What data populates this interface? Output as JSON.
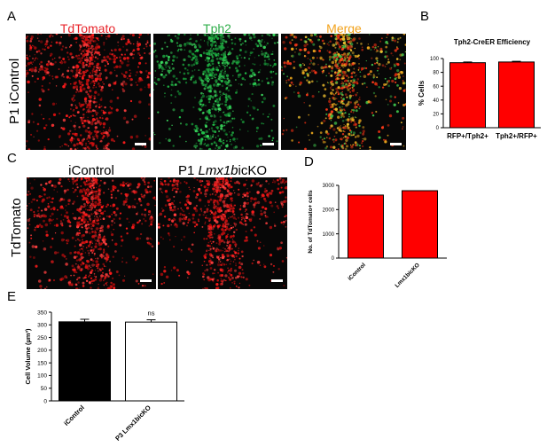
{
  "panels": {
    "A": {
      "letter": "A",
      "row_label": "P1 iControl",
      "channels": [
        {
          "label": "TdTomato",
          "color": "#e8242a"
        },
        {
          "label": "Tph2",
          "color": "#2fae4a"
        },
        {
          "label": "Merge",
          "color": "#f2a21b"
        }
      ]
    },
    "B": {
      "letter": "B"
    },
    "C": {
      "letter": "C",
      "row_label": "TdTomato",
      "col1_label": "iControl",
      "col2_prefix": "P1 ",
      "col2_gene": "Lmx1b",
      "col2_suffix": "icKO"
    },
    "D": {
      "letter": "D"
    },
    "E": {
      "letter": "E"
    }
  },
  "colors": {
    "red_bar": "#ff0000",
    "black_bar": "#000000",
    "white_bar": "#ffffff"
  },
  "chart_data": [
    {
      "id": "B",
      "type": "bar",
      "title": "Tph2-CreER Efficiency",
      "ylabel": "% Cells",
      "xlabel": "",
      "categories": [
        "RFP+/Tph2+",
        "Tph2+/RFP+"
      ],
      "values": [
        94,
        95
      ],
      "errors": [
        1,
        1
      ],
      "ylim": [
        0,
        100
      ],
      "yticks": [
        0,
        20,
        40,
        60,
        80,
        100
      ],
      "annotations": []
    },
    {
      "id": "D",
      "type": "bar",
      "title": "",
      "ylabel": "No. of TdTomato+ cells",
      "xlabel": "",
      "categories": [
        "iControl",
        "Lmx1bicKO"
      ],
      "values": [
        2600,
        2780
      ],
      "errors": [
        0,
        0
      ],
      "ylim": [
        0,
        3000
      ],
      "yticks": [
        0,
        1000,
        2000,
        3000
      ],
      "annotations": []
    },
    {
      "id": "E",
      "type": "bar",
      "title": "",
      "ylabel": "Cell Volume (µm³)",
      "xlabel": "",
      "categories": [
        "iControl",
        "P3 Lmx1bicKO"
      ],
      "values": [
        312,
        311
      ],
      "errors": [
        10,
        9
      ],
      "ylim": [
        0,
        350
      ],
      "yticks": [
        0,
        50,
        100,
        150,
        200,
        250,
        300,
        350
      ],
      "annotations": [
        "ns"
      ]
    }
  ]
}
